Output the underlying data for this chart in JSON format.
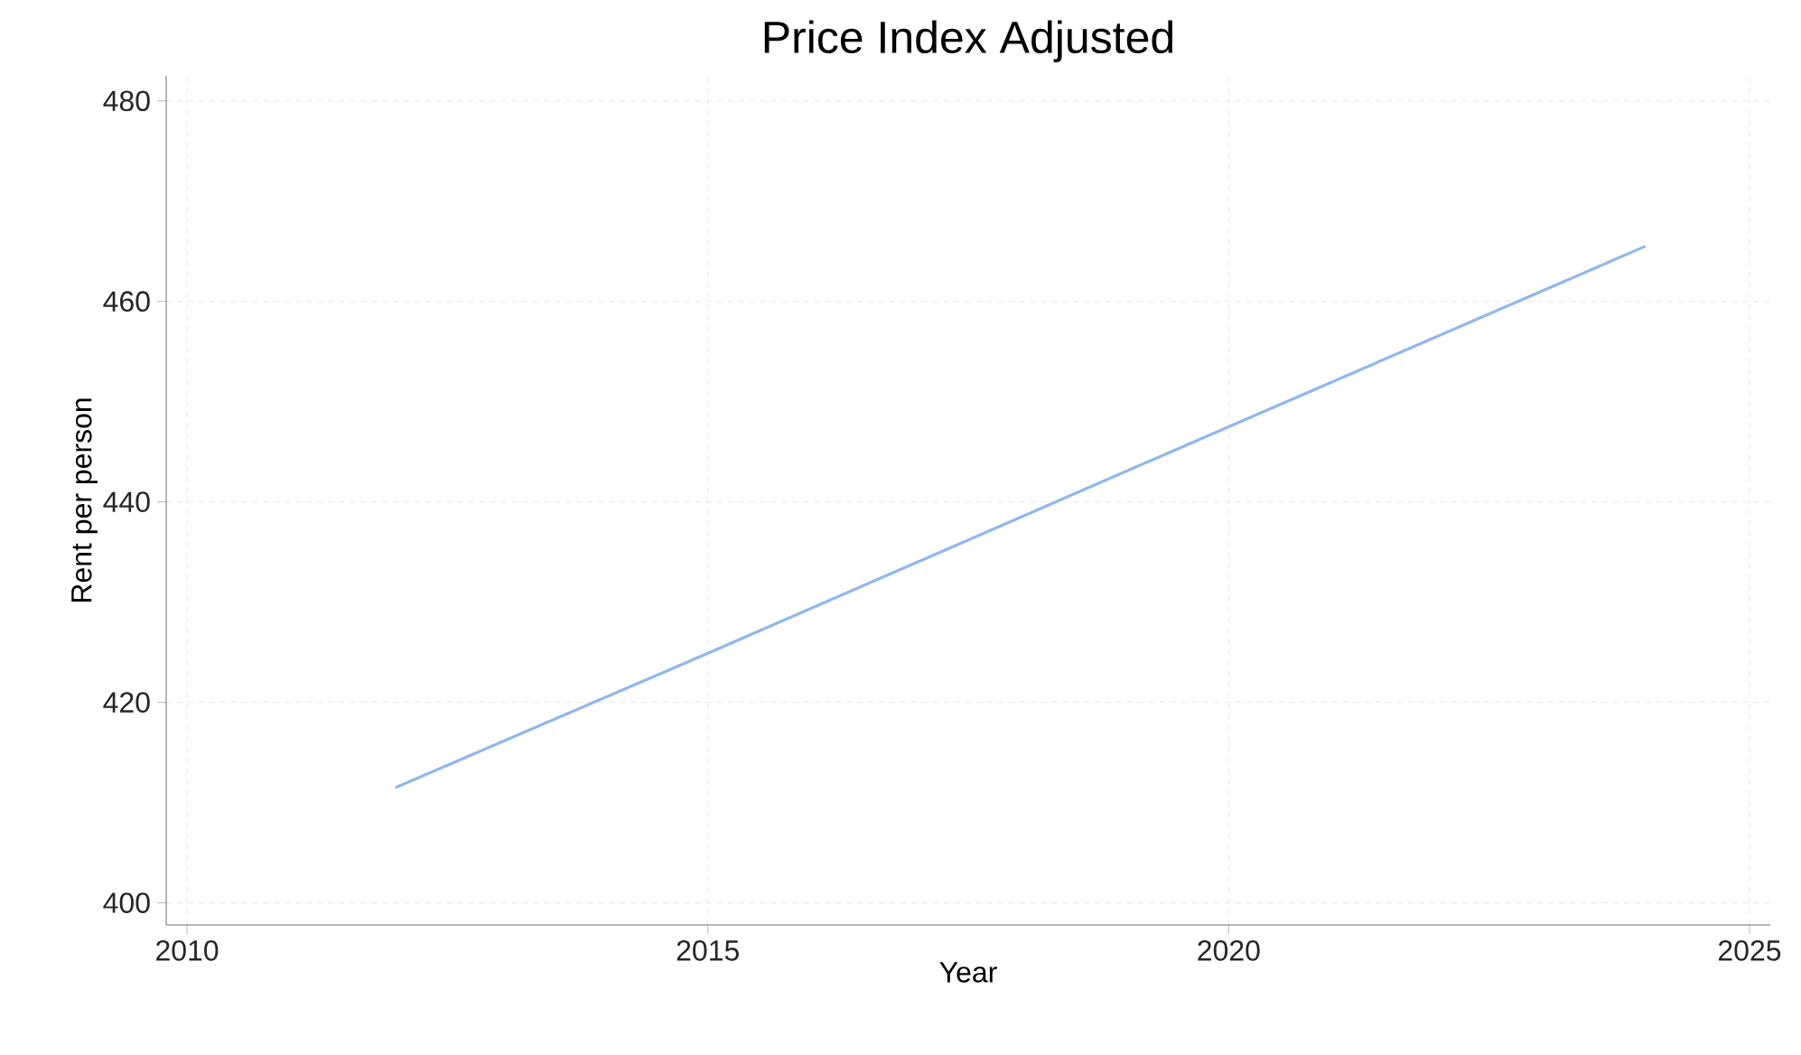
{
  "chart_data": {
    "type": "line",
    "title": "Price Index Adjusted",
    "xlabel": "Year",
    "ylabel": "Rent per person",
    "x": [
      2012,
      2015,
      2020,
      2024
    ],
    "series": [
      {
        "color": "#8fb8ec",
        "values": [
          411.5,
          424.9,
          447.5,
          465.5
        ]
      }
    ],
    "xlim": [
      2009.8,
      2025.2
    ],
    "ylim": [
      397.8,
      482.5
    ],
    "xticks": [
      2010,
      2015,
      2020,
      2025
    ],
    "yticks": [
      400,
      420,
      440,
      460,
      480
    ],
    "grid": true,
    "marker": "none",
    "line_style": "solid"
  }
}
